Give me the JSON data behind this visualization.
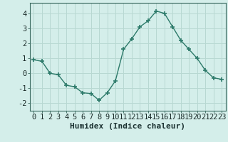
{
  "x": [
    0,
    1,
    2,
    3,
    4,
    5,
    6,
    7,
    8,
    9,
    10,
    11,
    12,
    13,
    14,
    15,
    16,
    17,
    18,
    19,
    20,
    21,
    22,
    23
  ],
  "y": [
    0.9,
    0.8,
    0.0,
    -0.1,
    -0.8,
    -0.9,
    -1.3,
    -1.35,
    -1.8,
    -1.3,
    -0.5,
    1.6,
    2.3,
    3.1,
    3.5,
    4.15,
    4.0,
    3.1,
    2.2,
    1.6,
    1.0,
    0.2,
    -0.3,
    -0.4
  ],
  "line_color": "#2d7a6a",
  "marker": "+",
  "markersize": 4,
  "markeredgewidth": 1.2,
  "linewidth": 1.0,
  "bg_color": "#d4eeea",
  "grid_color": "#b8d8d2",
  "xlabel": "Humidex (Indice chaleur)",
  "xlabel_fontsize": 8,
  "ylabel_ticks": [
    -2,
    -1,
    0,
    1,
    2,
    3,
    4
  ],
  "xlim": [
    -0.5,
    23.5
  ],
  "ylim": [
    -2.5,
    4.7
  ],
  "tick_fontsize": 7.5
}
